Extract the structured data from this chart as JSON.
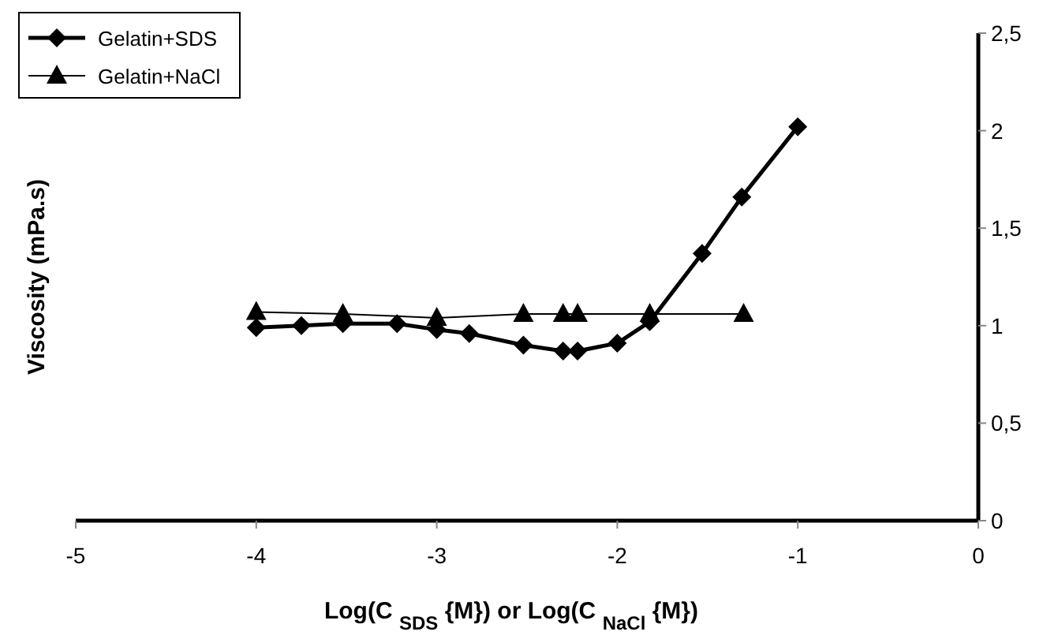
{
  "chart_data": {
    "type": "line",
    "xlabel": "Log(C $_{SDS}$ {M}) or Log(C $_{NaCl}$ {M})",
    "ylabel": "Viscosity (mPa.s)",
    "xlim": [
      -5,
      0
    ],
    "xticks": [
      -5,
      -4,
      -3,
      -2,
      -1,
      0
    ],
    "ylim": [
      0,
      2.5
    ],
    "yticks": [
      0,
      {
        "value": 0.5,
        "label": "0,5"
      },
      1,
      {
        "value": 1.5,
        "label": "1,5"
      },
      2,
      {
        "value": 2.5,
        "label": "2,5"
      }
    ],
    "grid": false,
    "legend": "top left",
    "series": [
      {
        "name": "Gelatin+SDS",
        "color": "#000000",
        "marker": "diamond",
        "x": [
          -4,
          -3.75,
          -3.52,
          -3.22,
          -3,
          -2.82,
          -2.52,
          -2.3,
          -2.22,
          -2,
          -1.82,
          -1.53,
          -1.31,
          -1
        ],
        "values": [
          0.99,
          1.0,
          1.01,
          1.01,
          0.98,
          0.96,
          0.9,
          0.87,
          0.87,
          0.91,
          1.02,
          1.37,
          1.66,
          2.02
        ]
      },
      {
        "name": "Gelatin+NaCl",
        "color": "#000000",
        "marker": "triangle",
        "x": [
          -4,
          -3.52,
          -3,
          -2.52,
          -2.3,
          -2.22,
          -1.82,
          -1.3
        ],
        "values": [
          1.07,
          1.06,
          1.04,
          1.06,
          1.06,
          1.06,
          1.06,
          1.06
        ]
      }
    ]
  }
}
